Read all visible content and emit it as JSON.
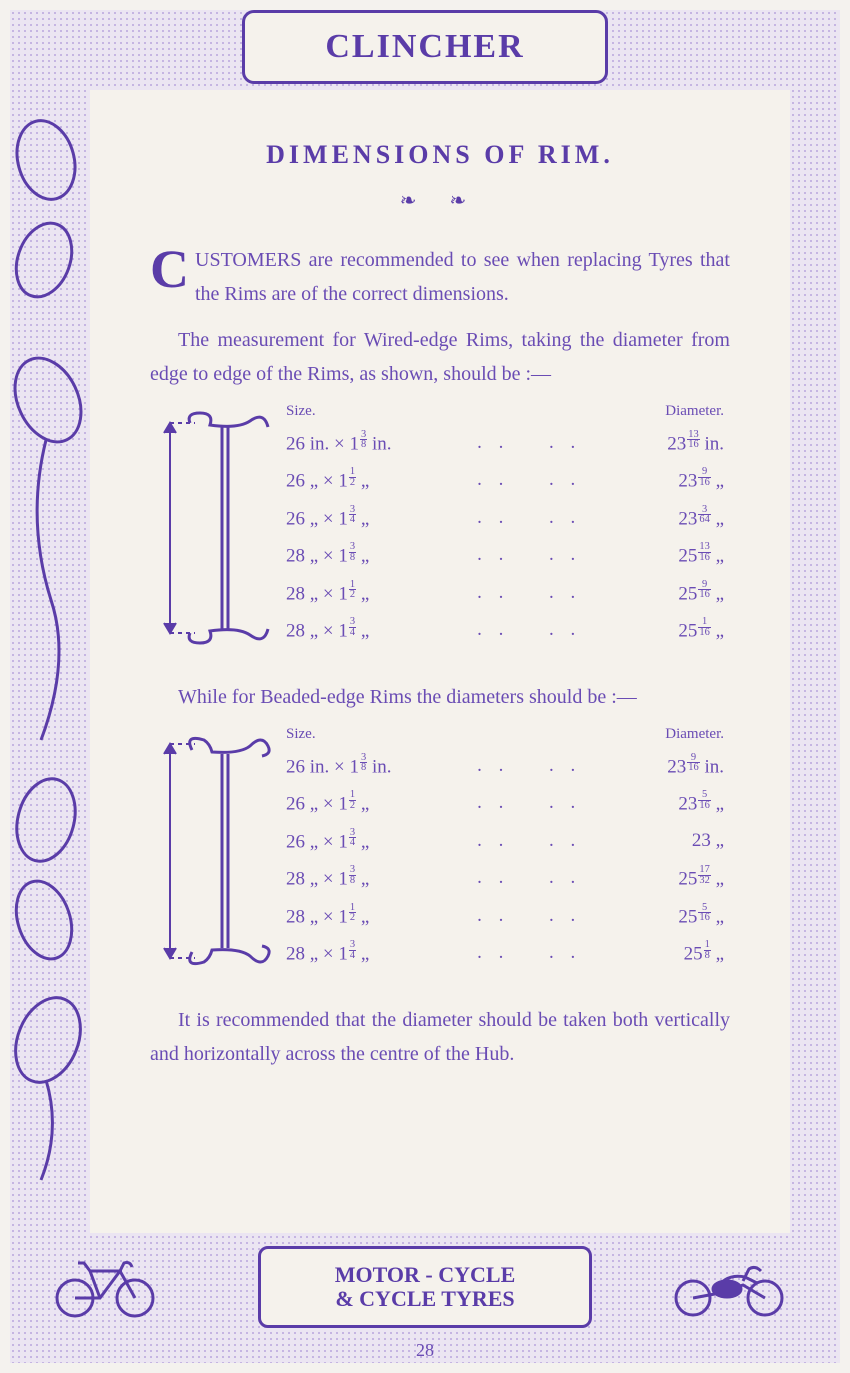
{
  "colors": {
    "ink": "#5a3ca8",
    "ink_light": "#6a4cb4",
    "page_bg": "#f5f2ec",
    "border_stipple": "#b8a5dc"
  },
  "header": {
    "brand": "CLINCHER"
  },
  "footer": {
    "line1": "MOTOR - CYCLE",
    "line2": "& CYCLE TYRES"
  },
  "page_number": "28",
  "title": "DIMENSIONS OF RIM.",
  "intro": {
    "dropcap": "C",
    "rest": "USTOMERS are recommended to see when replacing Tyres that the Rims are of the correct dimensions."
  },
  "para_wired": "The measurement for Wired-edge Rims, taking the diameter from edge to edge of the Rims, as shown, should be :—",
  "para_beaded": "While for Beaded-edge Rims the diameters should be :—",
  "para_final": "It is recommended that the diameter should be taken both vertically and horizontally across the centre of the Hub.",
  "headers": {
    "size": "Size.",
    "diameter": "Diameter."
  },
  "table_wired": [
    {
      "base": "26",
      "unit1": "in.",
      "w_int": "1",
      "w_n": "3",
      "w_d": "8",
      "unit2": "in.",
      "dia_int": "23",
      "dia_n": "13",
      "dia_d": "16",
      "unit3": "in."
    },
    {
      "base": "26",
      "unit1": "„",
      "w_int": "1",
      "w_n": "1",
      "w_d": "2",
      "unit2": "„",
      "dia_int": "23",
      "dia_n": "9",
      "dia_d": "16",
      "unit3": "„"
    },
    {
      "base": "26",
      "unit1": "„",
      "w_int": "1",
      "w_n": "3",
      "w_d": "4",
      "unit2": "„",
      "dia_int": "23",
      "dia_n": "3",
      "dia_d": "64",
      "unit3": "„"
    },
    {
      "base": "28",
      "unit1": "„",
      "w_int": "1",
      "w_n": "3",
      "w_d": "8",
      "unit2": "„",
      "dia_int": "25",
      "dia_n": "13",
      "dia_d": "16",
      "unit3": "„"
    },
    {
      "base": "28",
      "unit1": "„",
      "w_int": "1",
      "w_n": "1",
      "w_d": "2",
      "unit2": "„",
      "dia_int": "25",
      "dia_n": "9",
      "dia_d": "16",
      "unit3": "„"
    },
    {
      "base": "28",
      "unit1": "„",
      "w_int": "1",
      "w_n": "3",
      "w_d": "4",
      "unit2": "„",
      "dia_int": "25",
      "dia_n": "1",
      "dia_d": "16",
      "unit3": "„"
    }
  ],
  "table_beaded": [
    {
      "base": "26",
      "unit1": "in.",
      "w_int": "1",
      "w_n": "3",
      "w_d": "8",
      "unit2": "in.",
      "dia_int": "23",
      "dia_n": "9",
      "dia_d": "16",
      "unit3": "in."
    },
    {
      "base": "26",
      "unit1": "„",
      "w_int": "1",
      "w_n": "1",
      "w_d": "2",
      "unit2": "„",
      "dia_int": "23",
      "dia_n": "5",
      "dia_d": "16",
      "unit3": "„"
    },
    {
      "base": "26",
      "unit1": "„",
      "w_int": "1",
      "w_n": "3",
      "w_d": "4",
      "unit2": "„",
      "dia_int": "23",
      "dia_n": "",
      "dia_d": "",
      "unit3": "„"
    },
    {
      "base": "28",
      "unit1": "„",
      "w_int": "1",
      "w_n": "3",
      "w_d": "8",
      "unit2": "„",
      "dia_int": "25",
      "dia_n": "17",
      "dia_d": "32",
      "unit3": "„"
    },
    {
      "base": "28",
      "unit1": "„",
      "w_int": "1",
      "w_n": "1",
      "w_d": "2",
      "unit2": "„",
      "dia_int": "25",
      "dia_n": "5",
      "dia_d": "16",
      "unit3": "„"
    },
    {
      "base": "28",
      "unit1": "„",
      "w_int": "1",
      "w_n": "3",
      "w_d": "4",
      "unit2": "„",
      "dia_int": "25",
      "dia_n": "1",
      "dia_d": "8",
      "unit3": "„"
    }
  ]
}
